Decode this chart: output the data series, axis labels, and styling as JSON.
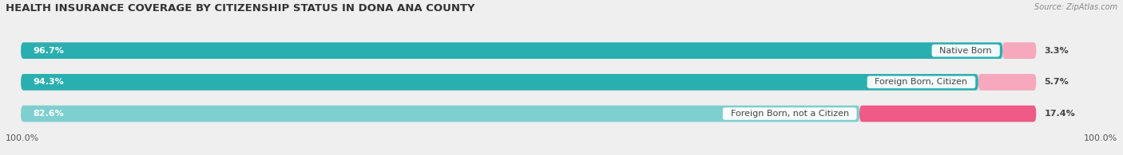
{
  "title": "HEALTH INSURANCE COVERAGE BY CITIZENSHIP STATUS IN DONA ANA COUNTY",
  "source": "Source: ZipAtlas.com",
  "categories": [
    "Native Born",
    "Foreign Born, Citizen",
    "Foreign Born, not a Citizen"
  ],
  "with_coverage": [
    96.7,
    94.3,
    82.6
  ],
  "without_coverage": [
    3.3,
    5.7,
    17.4
  ],
  "color_with_0": "#2AAFB0",
  "color_with_1": "#2AAFB0",
  "color_with_2": "#7ECFCF",
  "color_without_0": "#F7A8BC",
  "color_without_1": "#F7A8BC",
  "color_without_2": "#EF5A87",
  "bg_color": "#efefef",
  "bar_bg": "#e0e0e0",
  "title_fontsize": 9.5,
  "label_fontsize": 8,
  "source_fontsize": 7,
  "tick_fontsize": 8,
  "left_label": "100.0%",
  "right_label": "100.0%",
  "legend_color_with": "#2AAFB0",
  "legend_color_without": "#EF5A87"
}
